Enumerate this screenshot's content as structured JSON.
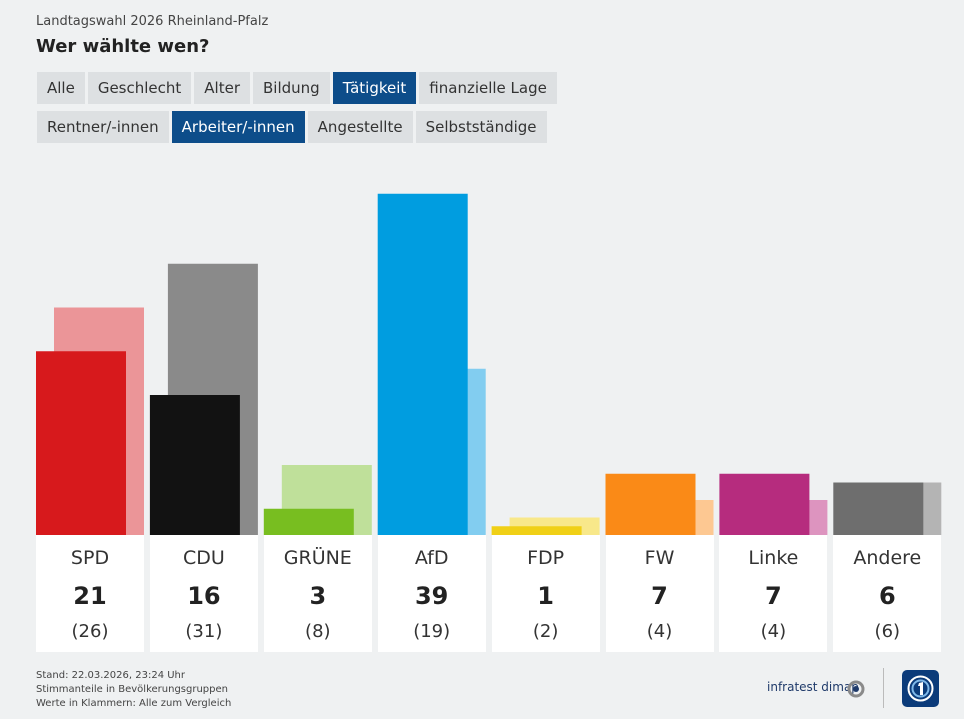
{
  "header": {
    "subtitle": "Landtagswahl 2026 Rheinland-Pfalz",
    "title": "Wer wählte wen?"
  },
  "tabs_row1": [
    {
      "label": "Alle",
      "active": false
    },
    {
      "label": "Geschlecht",
      "active": false
    },
    {
      "label": "Alter",
      "active": false
    },
    {
      "label": "Bildung",
      "active": false
    },
    {
      "label": "Tätigkeit",
      "active": true
    },
    {
      "label": "finanzielle Lage",
      "active": false
    }
  ],
  "tabs_row2": [
    {
      "label": "Rentner/-innen",
      "active": false
    },
    {
      "label": "Arbeiter/-innen",
      "active": true
    },
    {
      "label": "Angestellte",
      "active": false
    },
    {
      "label": "Selbstständige",
      "active": false
    }
  ],
  "chart_data": {
    "type": "bar",
    "categories": [
      "SPD",
      "CDU",
      "GRÜNE",
      "AfD",
      "FDP",
      "FW",
      "Linke",
      "Andere"
    ],
    "series": [
      {
        "values": [
          21,
          16,
          3,
          39,
          1,
          7,
          7,
          6
        ]
      },
      {
        "values": [
          26,
          31,
          8,
          19,
          2,
          4,
          4,
          6
        ]
      }
    ],
    "display_values": [
      "21",
      "16",
      "3",
      "39",
      "1",
      "7",
      "7",
      "6"
    ],
    "display_compare": [
      "(26)",
      "(31)",
      "(8)",
      "(19)",
      "(2)",
      "(4)",
      "(4)",
      "(6)"
    ],
    "colors": [
      "#d7191c",
      "#121212",
      "#78be20",
      "#009de0",
      "#f0d016",
      "#fa8a17",
      "#b62c7e",
      "#6e6e6e"
    ],
    "compare_colors": [
      "#eb9598",
      "#8a8a8a",
      "#bfe09a",
      "#82cdf0",
      "#f8e88a",
      "#fdc892",
      "#dd94bf",
      "#b4b4b4"
    ],
    "ylim": [
      0,
      40
    ]
  },
  "footer": {
    "line1": "Stand: 22.03.2026, 23:24 Uhr",
    "line2": "Stimmanteile in Bevölkerungsgruppen",
    "line3": "Werte in Klammern: Alle zum Vergleich"
  },
  "brand": {
    "name": "infratest dimap",
    "icon": "infratest-dimap-icon",
    "logo": "tagesschau-logo"
  }
}
